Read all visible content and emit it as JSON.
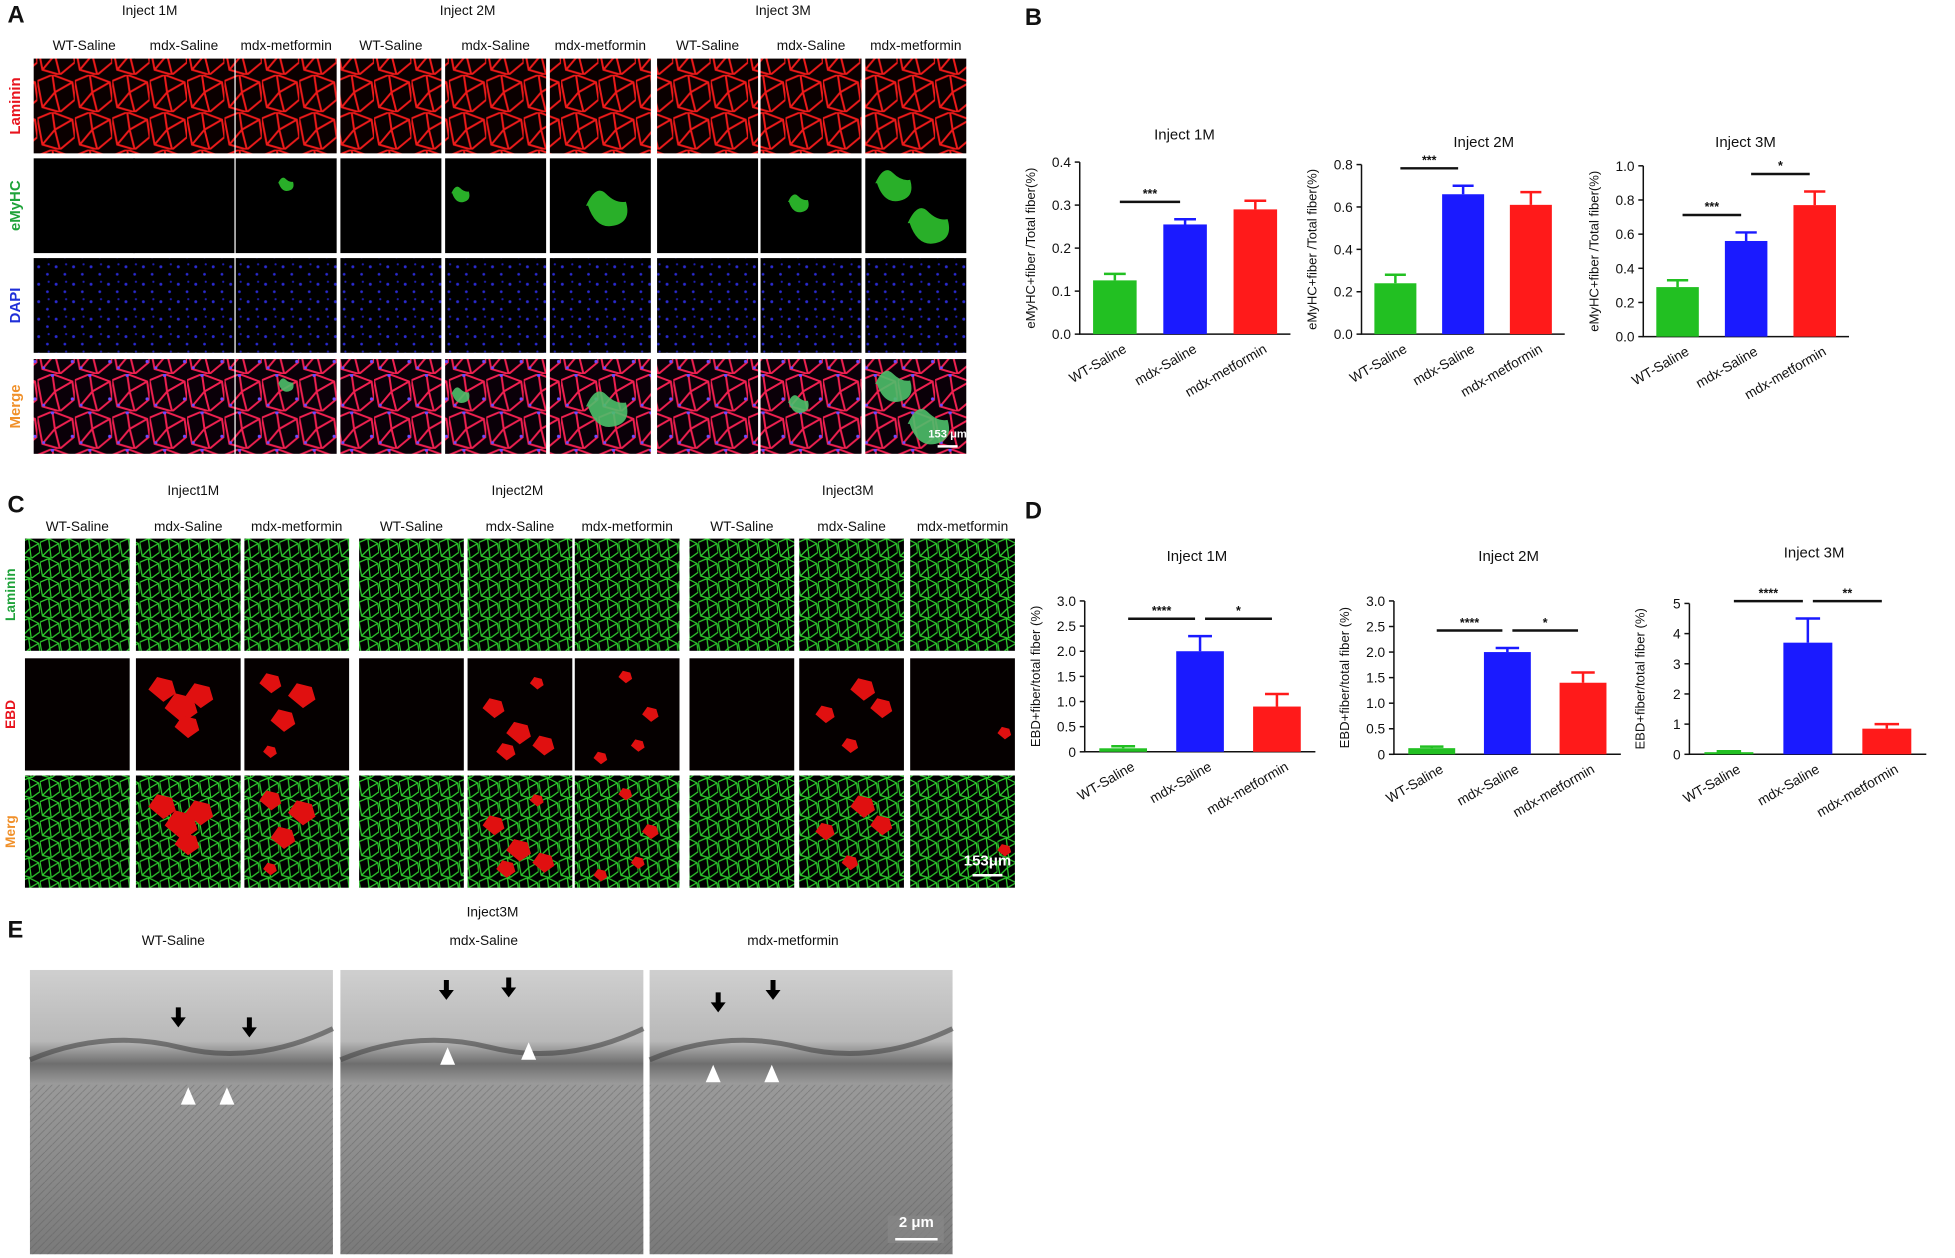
{
  "figure": {
    "panel_labels": [
      "A",
      "B",
      "C",
      "D",
      "E"
    ],
    "A": {
      "groups": [
        {
          "title": "Inject 1M",
          "columns": [
            "WT-Saline",
            "mdx-Saline",
            "mdx-metformin"
          ]
        },
        {
          "title": "Inject 2M",
          "columns": [
            "WT-Saline",
            "mdx-Saline",
            "mdx-metformin"
          ]
        },
        {
          "title": "Inject 3M",
          "columns": [
            "WT-Saline",
            "mdx-Saline",
            "mdx-metformin"
          ]
        }
      ],
      "rows": [
        {
          "label": "Laminin",
          "color": "#e8141e"
        },
        {
          "label": "eMyHC",
          "color": "#1fa33a"
        },
        {
          "label": "DAPI",
          "color": "#1f2fd8"
        },
        {
          "label": "Merge",
          "color": "#f0902a"
        }
      ],
      "scale_bar": "153 μm"
    },
    "C": {
      "groups": [
        {
          "title": "Inject1M",
          "columns": [
            "WT-Saline",
            "mdx-Saline",
            "mdx-metformin"
          ]
        },
        {
          "title": "Inject2M",
          "columns": [
            "WT-Saline",
            "mdx-Saline",
            "mdx-metformin"
          ]
        },
        {
          "title": "Inject3M",
          "columns": [
            "WT-Saline",
            "mdx-Saline",
            "mdx-metformin"
          ]
        }
      ],
      "rows": [
        {
          "label": "Laminin",
          "color": "#1fa33a"
        },
        {
          "label": "EBD",
          "color": "#e8141e"
        },
        {
          "label": "Merg",
          "color": "#f0902a"
        }
      ],
      "scale_bar": "153μm"
    },
    "E": {
      "title": "Inject3M",
      "columns": [
        "WT-Saline",
        "mdx-Saline",
        "mdx-metformin"
      ],
      "scale_bar": "2 μm"
    }
  },
  "chart_data": [
    {
      "type": "bar",
      "title": "Inject 1M",
      "y_label": "eMyHC+fiber /Total fiber(%)",
      "categories": [
        "WT-Saline",
        "mdx-Saline",
        "mdx-metformin"
      ],
      "values": [
        0.125,
        0.255,
        0.29
      ],
      "errors": [
        0.015,
        0.012,
        0.02
      ],
      "colors": [
        "#22c022",
        "#1a1aff",
        "#ff1a1a"
      ],
      "ylim": [
        0,
        0.4
      ],
      "yticks": [
        {
          "value": 0,
          "label": "0.0"
        },
        0.1,
        0.2,
        0.3,
        0.4
      ],
      "significance": [
        "***"
      ]
    },
    {
      "type": "bar",
      "title": "Inject 2M",
      "y_label": "eMyHC+fiber /Total fiber(%)",
      "categories": [
        "WT-Saline",
        "mdx-Saline",
        "mdx-metformin"
      ],
      "values": [
        0.24,
        0.66,
        0.61
      ],
      "errors": [
        0.04,
        0.04,
        0.06
      ],
      "colors": [
        "#22c022",
        "#1a1aff",
        "#ff1a1a"
      ],
      "ylim": [
        0,
        0.8
      ],
      "yticks": [
        {
          "value": 0,
          "label": "0.0"
        },
        0.2,
        0.4,
        0.6,
        0.8
      ],
      "significance": [
        "***"
      ]
    },
    {
      "type": "bar",
      "title": "Inject 3M",
      "y_label": "eMyHC+fiber /Total fiber(%)",
      "categories": [
        "WT-Saline",
        "mdx-Saline",
        "mdx-metformin"
      ],
      "values": [
        0.29,
        0.56,
        0.77
      ],
      "errors": [
        0.04,
        0.05,
        0.08
      ],
      "colors": [
        "#22c022",
        "#1a1aff",
        "#ff1a1a"
      ],
      "ylim": [
        0,
        1
      ],
      "yticks": [
        {
          "value": 0,
          "label": "0.0"
        },
        0.2,
        0.4,
        0.6,
        0.8,
        {
          "value": 1,
          "label": "1.0"
        }
      ],
      "significance": [
        "***",
        "*"
      ]
    },
    {
      "type": "bar",
      "title": "Inject 1M",
      "y_label": "EBD+fiber/total fiber (%)",
      "categories": [
        "WT-Saline",
        "mdx-Saline",
        "mdx-metformin"
      ],
      "values": [
        0.07,
        2.0,
        0.9
      ],
      "errors": [
        0.04,
        0.3,
        0.25
      ],
      "colors": [
        "#22c022",
        "#1a1aff",
        "#ff1a1a"
      ],
      "ylim": [
        0,
        3
      ],
      "yticks": [
        0,
        0.5,
        {
          "value": 1,
          "label": "1.0"
        },
        1.5,
        {
          "value": 2,
          "label": "2.0"
        },
        2.5,
        {
          "value": 3,
          "label": "3.0"
        }
      ],
      "significance": [
        "****",
        "*"
      ]
    },
    {
      "type": "bar",
      "title": "Inject 2M",
      "y_label": "EBD+fiber/total fiber (%)",
      "categories": [
        "WT-Saline",
        "mdx-Saline",
        "mdx-metformin"
      ],
      "values": [
        0.12,
        2.0,
        1.4
      ],
      "errors": [
        0.03,
        0.08,
        0.2
      ],
      "colors": [
        "#22c022",
        "#1a1aff",
        "#ff1a1a"
      ],
      "ylim": [
        0,
        3
      ],
      "yticks": [
        0,
        0.5,
        {
          "value": 1,
          "label": "1.0"
        },
        1.5,
        {
          "value": 2,
          "label": "2.0"
        },
        2.5,
        {
          "value": 3,
          "label": "3.0"
        }
      ],
      "significance": [
        "****",
        "*"
      ]
    },
    {
      "type": "bar",
      "title": "Inject 3M",
      "y_label": "EBD+fiber/total fiber (%)",
      "categories": [
        "WT-Saline",
        "mdx-Saline",
        "mdx-metformin"
      ],
      "values": [
        0.07,
        3.7,
        0.85
      ],
      "errors": [
        0.03,
        0.8,
        0.15
      ],
      "colors": [
        "#22c022",
        "#1a1aff",
        "#ff1a1a"
      ],
      "ylim": [
        0,
        5
      ],
      "yticks": [
        0,
        1,
        2,
        3,
        4,
        5
      ],
      "significance": [
        "****",
        "**"
      ]
    }
  ]
}
